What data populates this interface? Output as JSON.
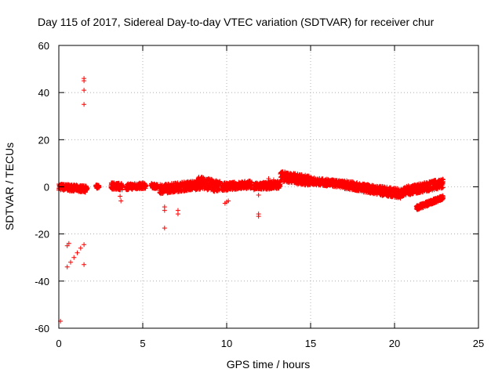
{
  "chart_data": {
    "type": "scatter",
    "title": "Day 115 of 2017, Sidereal Day-to-day VTEC variation (SDTVAR) for receiver chur",
    "xlabel": "GPS time / hours",
    "ylabel": "SDTVAR / TECUs",
    "xlim": [
      0,
      25
    ],
    "ylim": [
      -60,
      60
    ],
    "x_ticks": [
      0,
      5,
      10,
      15,
      20,
      25
    ],
    "y_ticks": [
      -60,
      -40,
      -20,
      0,
      20,
      40,
      60
    ],
    "grid": true,
    "marker": "+",
    "series": [
      {
        "name": "SDTVAR",
        "color": "#ff0000",
        "points": [
          [
            0.1,
            -57
          ],
          [
            1.5,
            46
          ],
          [
            1.5,
            45
          ],
          [
            1.5,
            41
          ],
          [
            1.5,
            35
          ],
          [
            1.5,
            -33
          ],
          [
            0.5,
            -34
          ],
          [
            0.7,
            -32
          ],
          [
            0.9,
            -30
          ],
          [
            1.1,
            -28
          ],
          [
            1.3,
            -26
          ],
          [
            1.5,
            -24.5
          ],
          [
            0.5,
            -25
          ],
          [
            0.6,
            -24
          ],
          [
            3.65,
            -4
          ],
          [
            3.7,
            -6
          ],
          [
            6.3,
            -8.5
          ],
          [
            6.3,
            -10
          ],
          [
            6.3,
            -17.5
          ],
          [
            7.1,
            -10
          ],
          [
            7.1,
            -11.5
          ],
          [
            9.9,
            -7
          ],
          [
            10.0,
            -6.5
          ],
          [
            10.1,
            -6
          ],
          [
            11.9,
            -11.5
          ],
          [
            11.9,
            -12.5
          ],
          [
            11.9,
            -3.5
          ],
          [
            12.5,
            3.5
          ],
          [
            12.8,
            3
          ]
        ],
        "bands": [
          {
            "x_start": 0.0,
            "x_end": 1.7,
            "y_start": 0.0,
            "y_end": -1.0,
            "amplitude": 1.4
          },
          {
            "x_start": 2.2,
            "x_end": 2.4,
            "y_start": 0.0,
            "y_end": 0.0,
            "amplitude": 0.8
          },
          {
            "x_start": 3.1,
            "x_end": 3.8,
            "y_start": 0.5,
            "y_end": 0.0,
            "amplitude": 1.5
          },
          {
            "x_start": 4.0,
            "x_end": 5.2,
            "y_start": 0.0,
            "y_end": 0.5,
            "amplitude": 1.3
          },
          {
            "x_start": 5.5,
            "x_end": 5.9,
            "y_start": 0.5,
            "y_end": 0.0,
            "amplitude": 1.0
          },
          {
            "x_start": 6.0,
            "x_end": 8.5,
            "y_start": -1.0,
            "y_end": 1.0,
            "amplitude": 2.0
          },
          {
            "x_start": 8.3,
            "x_end": 9.6,
            "y_start": 2.0,
            "y_end": 0.0,
            "amplitude": 2.5
          },
          {
            "x_start": 9.7,
            "x_end": 11.5,
            "y_start": 0.0,
            "y_end": 1.0,
            "amplitude": 1.6
          },
          {
            "x_start": 11.6,
            "x_end": 13.2,
            "y_start": 0.0,
            "y_end": 1.0,
            "amplitude": 1.6
          },
          {
            "x_start": 13.2,
            "x_end": 15.0,
            "y_start": 4.5,
            "y_end": 2.5,
            "amplitude": 2.2
          },
          {
            "x_start": 15.0,
            "x_end": 17.0,
            "y_start": 2.5,
            "y_end": 1.0,
            "amplitude": 1.5
          },
          {
            "x_start": 17.0,
            "x_end": 19.0,
            "y_start": 1.0,
            "y_end": -1.5,
            "amplitude": 1.8
          },
          {
            "x_start": 19.0,
            "x_end": 20.5,
            "y_start": -1.5,
            "y_end": -3.0,
            "amplitude": 2.0
          },
          {
            "x_start": 20.5,
            "x_end": 22.9,
            "y_start": -2.0,
            "y_end": 1.5,
            "amplitude": 2.0
          },
          {
            "x_start": 21.3,
            "x_end": 22.9,
            "y_start": -9.0,
            "y_end": -4.5,
            "amplitude": 1.0
          }
        ]
      }
    ]
  }
}
